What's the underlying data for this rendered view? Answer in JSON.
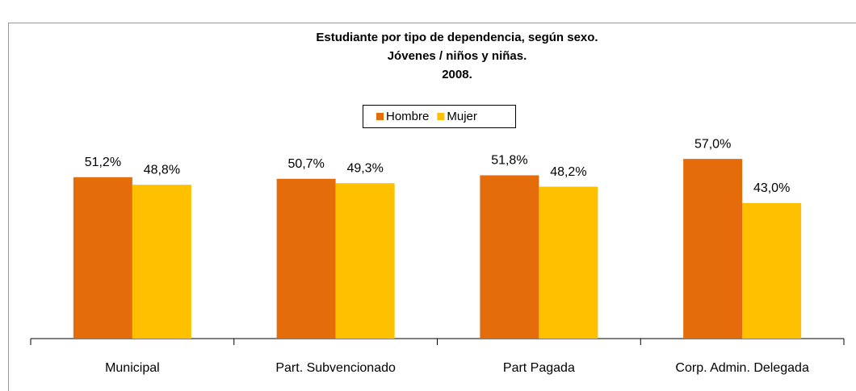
{
  "chart_data": {
    "type": "bar",
    "title": [
      "Estudiante por tipo de dependencia, según sexo.",
      "Jóvenes / niños y niñas.",
      "2008."
    ],
    "categories": [
      "Municipal",
      "Part. Subvencionado",
      "Part Pagada",
      "Corp. Admin. Delegada"
    ],
    "series": [
      {
        "name": "Hombre",
        "color": "#e46c0a",
        "values": [
          51.2,
          50.7,
          51.8,
          57.0
        ],
        "value_labels": [
          "51,2%",
          "50,7%",
          "51,8%",
          "57,0%"
        ]
      },
      {
        "name": "Mujer",
        "color": "#ffc000",
        "values": [
          48.8,
          49.3,
          48.2,
          43.0
        ],
        "value_labels": [
          "48,8%",
          "49,3%",
          "48,2%",
          "43,0%"
        ]
      }
    ],
    "legend": "top"
  }
}
